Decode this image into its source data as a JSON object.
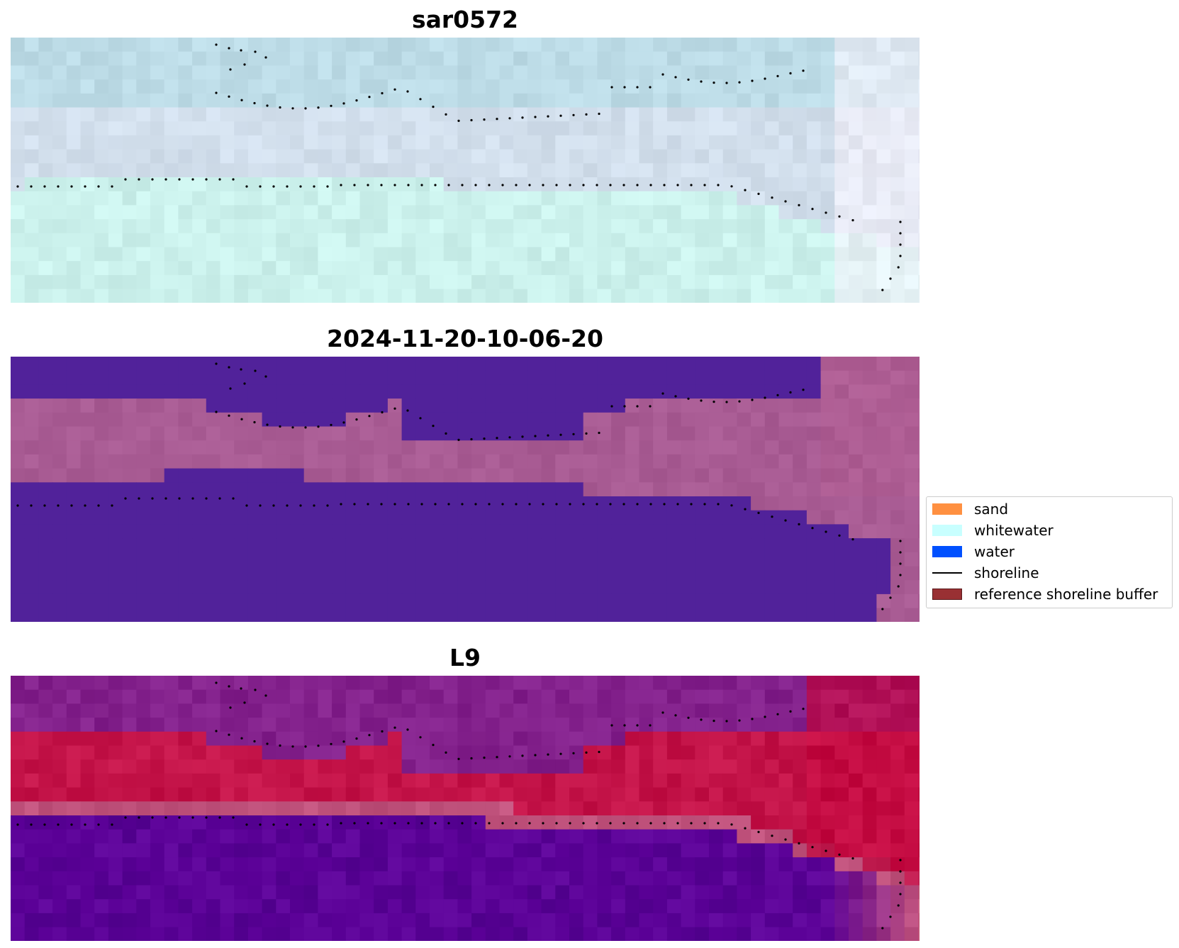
{
  "figure": {
    "panels": [
      {
        "title": "sar0572",
        "kind": "rgb",
        "palette": {
          "sea": "#cbf1ec",
          "surf": "#d9e0ee",
          "lagoon": "#bcdbe6",
          "land_edge": "#f6f2fb"
        }
      },
      {
        "title": "2024-11-20-10-06-20",
        "kind": "classified",
        "palette": {
          "water": "#51229a",
          "sand_mix": "#a85b93",
          "edge": "#b35f93"
        }
      },
      {
        "title": "L9",
        "kind": "index",
        "palette": {
          "low": "#5a0096",
          "mid": "#c0527c",
          "high": "#c4083f"
        }
      }
    ],
    "legend": [
      {
        "label": "sand",
        "type": "patch",
        "color": "#ff9041",
        "edge": "#ff9041"
      },
      {
        "label": "whitewater",
        "type": "patch",
        "color": "#c8ffff",
        "edge": "#c8ffff"
      },
      {
        "label": "water",
        "type": "patch",
        "color": "#0050ff",
        "edge": "#0050ff"
      },
      {
        "label": "shoreline",
        "type": "line",
        "color": "#000000"
      },
      {
        "label": "reference shoreline buffer",
        "type": "patch",
        "color": "#993033",
        "edge": "#5a1a1c"
      }
    ]
  }
}
